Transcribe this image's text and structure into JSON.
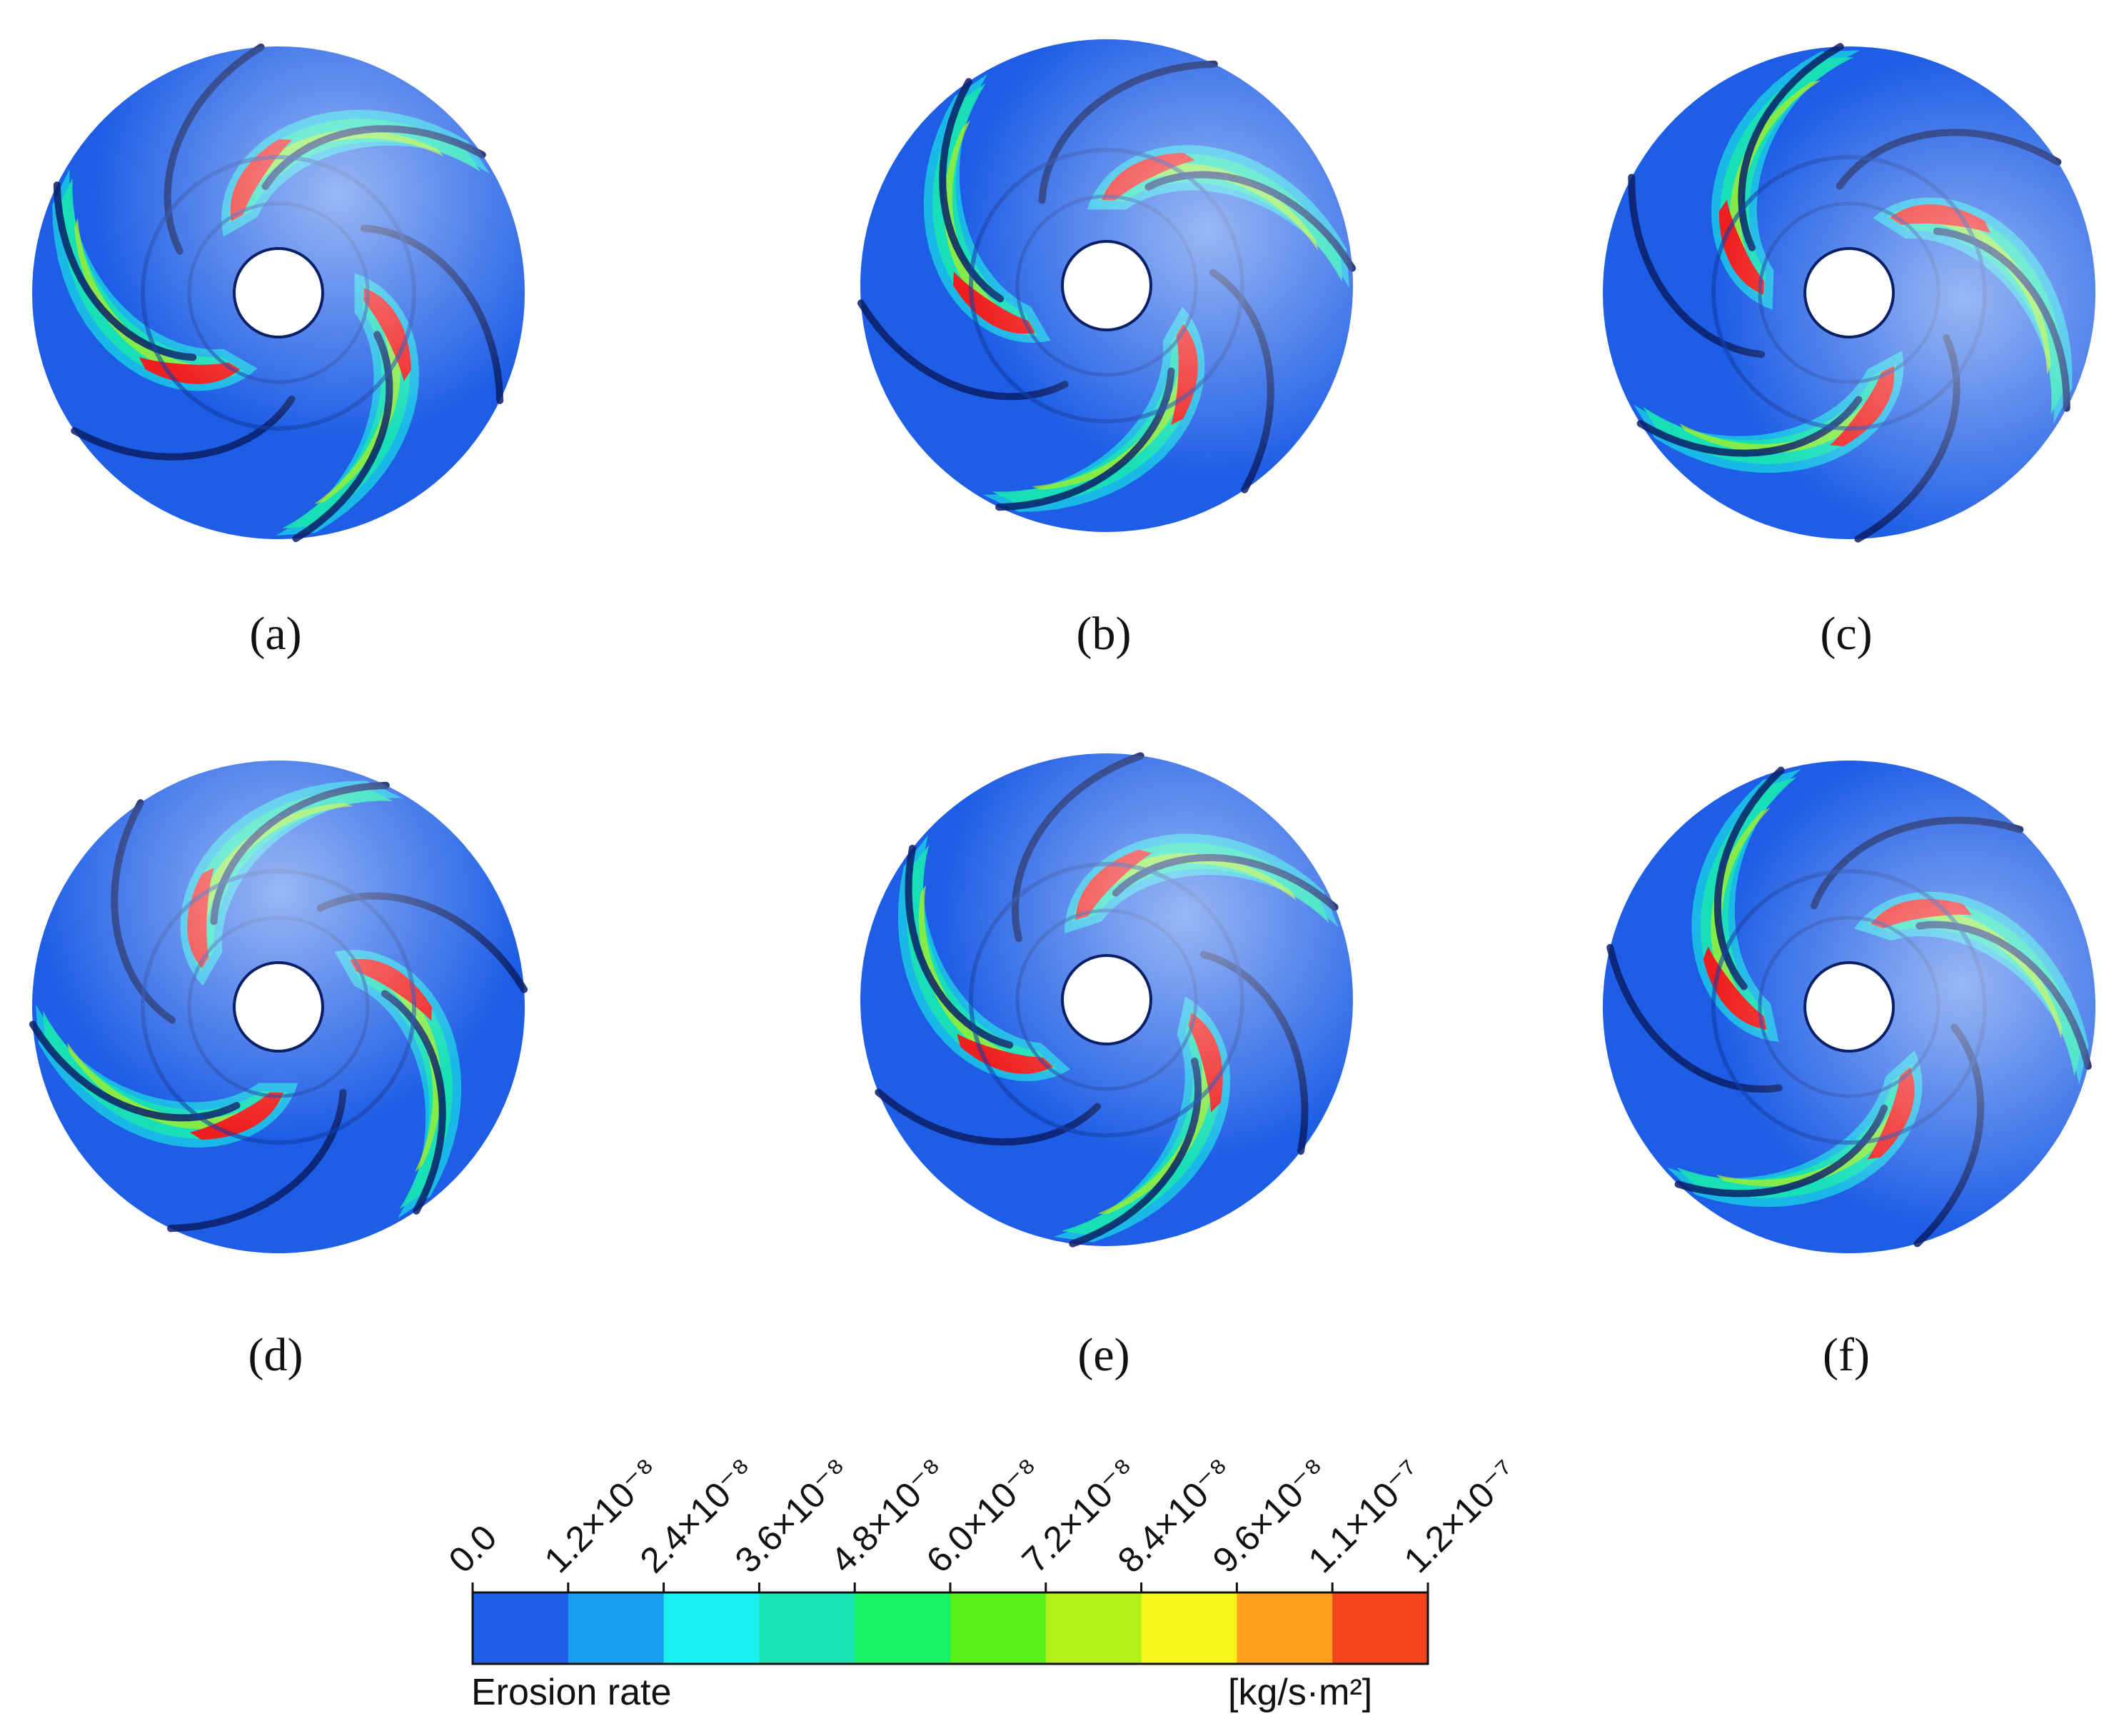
{
  "panels": [
    {
      "id": "a",
      "label": "(a)",
      "rotation": 0
    },
    {
      "id": "b",
      "label": "(b)",
      "rotation": 30
    },
    {
      "id": "c",
      "label": "(c)",
      "rotation": 62
    },
    {
      "id": "d",
      "label": "(d)",
      "rotation": -30
    },
    {
      "id": "e",
      "label": "(e)",
      "rotation": 12
    },
    {
      "id": "f",
      "label": "(f)",
      "rotation": 48
    }
  ],
  "legend": {
    "title": "Erosion rate",
    "unit": "[kg/s·m²]",
    "ticks": [
      "0.0",
      "1.2×10⁻⁸",
      "2.4×10⁻⁸",
      "3.6×10⁻⁸",
      "4.8×10⁻⁸",
      "6.0×10⁻⁸",
      "7.2×10⁻⁸",
      "8.4×10⁻⁸",
      "9.6×10⁻⁸",
      "1.1×10⁻⁷",
      "1.2×10⁻⁷"
    ],
    "colors": [
      "#1e5ee6",
      "#199ef0",
      "#19f0f0",
      "#19e3b4",
      "#19f064",
      "#5af019",
      "#b4f019",
      "#f5f519",
      "#ffa01e",
      "#f5441e"
    ]
  },
  "impeller_colors": {
    "base": "#1e5ee6",
    "low": "#19c8e6",
    "mid": "#19e3b4",
    "high": "#b4f019",
    "peak": "#f01e1e"
  }
}
